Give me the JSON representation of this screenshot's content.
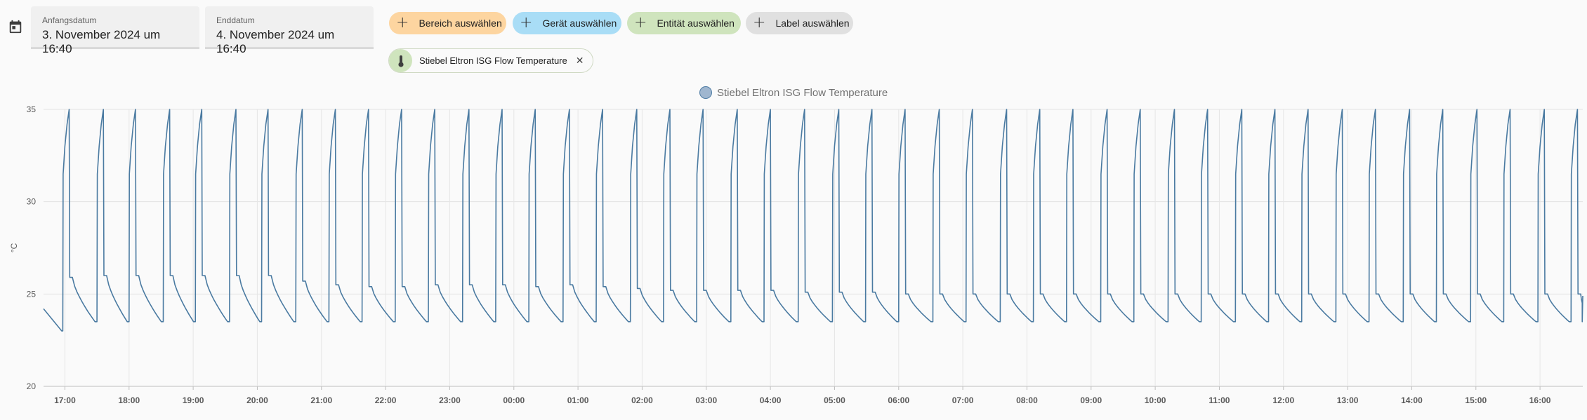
{
  "date_range": {
    "start_label": "Anfangsdatum",
    "start_value": "3. November 2024 um 16:40",
    "end_label": "Enddatum",
    "end_value": "4. November 2024 um 16:40"
  },
  "icons": {
    "calendar": "calendar-icon",
    "plus": "plus-icon",
    "thermometer": "thermometer-icon",
    "close": "close-icon"
  },
  "filters": {
    "area_label": "Bereich auswählen",
    "device_label": "Gerät auswählen",
    "entity_label": "Entität auswählen",
    "label_label": "Label auswählen"
  },
  "colors": {
    "area_chip": "#fdd5a0",
    "device_chip": "#a9ddf6",
    "entity_chip": "#cfe4bd",
    "label_chip": "#e0e0e0",
    "series_line": "#4a7aa1"
  },
  "selected_entity": {
    "name": "Stiebel Eltron ISG Flow Temperature"
  },
  "chart_data": {
    "type": "line",
    "title": "",
    "legend": "top-center",
    "ylabel": "°C",
    "xlabel": "",
    "ylim": [
      20,
      35
    ],
    "yticks": [
      "20",
      "25",
      "30",
      "35"
    ],
    "grid": true,
    "x_start": "16:40",
    "x_end": "16:40",
    "x_tick_labels": [
      "17:00",
      "18:00",
      "19:00",
      "20:00",
      "21:00",
      "22:00",
      "23:00",
      "00:00",
      "01:00",
      "02:00",
      "03:00",
      "04:00",
      "05:00",
      "06:00",
      "07:00",
      "08:00",
      "09:00",
      "10:00",
      "11:00",
      "12:00",
      "13:00",
      "14:00",
      "15:00",
      "16:00"
    ],
    "series": [
      {
        "name": "Stiebel Eltron ISG Flow Temperature",
        "color": "#4a7aa1",
        "initial": {
          "time": "16:40",
          "value": 24.2,
          "min_before_first_cycle": 23.0
        },
        "cycle_start_times": [
          "16:58",
          "17:30",
          "18:00",
          "18:32",
          "19:02",
          "19:34",
          "20:04",
          "20:36",
          "21:07",
          "21:38",
          "22:09",
          "22:40",
          "23:12",
          "23:43",
          "00:14",
          "00:46",
          "01:17",
          "01:49",
          "02:20",
          "02:51",
          "03:23",
          "03:54",
          "04:26",
          "04:58",
          "05:29",
          "06:00",
          "06:32",
          "07:03",
          "07:35",
          "08:06",
          "08:37",
          "09:09",
          "09:40",
          "10:12",
          "10:43",
          "11:15",
          "11:46",
          "12:17",
          "12:49",
          "13:20",
          "13:52",
          "14:23",
          "14:55",
          "15:26",
          "15:58",
          "16:29"
        ],
        "cycle_peak": 35.0,
        "cycle_post_drop_values": [
          25.9,
          26.0,
          26.0,
          26.0,
          26.0,
          26.0,
          26.0,
          25.7,
          25.5,
          25.4,
          25.4,
          25.5,
          25.5,
          25.5,
          25.4,
          25.5,
          25.4,
          25.3,
          25.2,
          25.2,
          25.2,
          25.2,
          25.1,
          25.1,
          25.1,
          25.0,
          25.0,
          25.0,
          25.0,
          25.0,
          25.0,
          25.0,
          25.0,
          25.0,
          25.0,
          25.0,
          25.0,
          25.0,
          25.0,
          25.0,
          25.0,
          25.0,
          25.0,
          25.0,
          25.0,
          25.0
        ],
        "cycle_min": 23.5,
        "final": {
          "time": "16:40",
          "value": 24.9
        }
      }
    ]
  }
}
